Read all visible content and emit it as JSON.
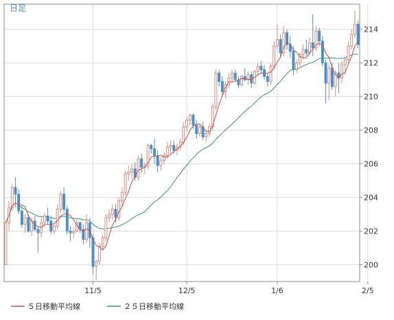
{
  "chart_data": {
    "type": "candlestick",
    "title": "日足",
    "colors": {
      "up": "#d98a7a",
      "down": "#4a90c8",
      "ma5": "#c84c4c",
      "ma25": "#2f9a6a"
    },
    "ylim": [
      199,
      215.5
    ],
    "yticks": [
      200,
      202,
      204,
      206,
      208,
      210,
      212,
      214
    ],
    "xticks": [
      {
        "label": "11/5",
        "index": 27
      },
      {
        "label": "12/5",
        "index": 56
      },
      {
        "label": "1/6",
        "index": 84
      },
      {
        "label": "2/5",
        "index": 112
      }
    ],
    "legend": [
      {
        "label": "５日移動平均線",
        "color": "#c84c4c"
      },
      {
        "label": "２５日移動平均線",
        "color": "#2f9a6a"
      }
    ],
    "candles": [
      [
        200.0,
        202.6,
        200.0,
        202.5
      ],
      [
        202.5,
        203.8,
        202.0,
        203.4
      ],
      [
        203.4,
        204.8,
        203.2,
        204.6
      ],
      [
        204.6,
        205.2,
        203.4,
        204.2
      ],
      [
        204.2,
        204.5,
        203.0,
        203.2
      ],
      [
        203.2,
        203.5,
        202.2,
        202.4
      ],
      [
        202.4,
        203.0,
        201.9,
        202.8
      ],
      [
        202.8,
        203.0,
        201.9,
        202.0
      ],
      [
        202.0,
        202.8,
        201.7,
        202.6
      ],
      [
        202.6,
        202.9,
        202.0,
        202.1
      ],
      [
        202.1,
        202.3,
        200.7,
        201.9
      ],
      [
        201.9,
        202.8,
        201.6,
        202.5
      ],
      [
        202.5,
        203.1,
        202.2,
        202.9
      ],
      [
        202.9,
        203.4,
        202.4,
        202.6
      ],
      [
        202.6,
        202.9,
        201.8,
        202.0
      ],
      [
        202.0,
        202.4,
        201.8,
        202.3
      ],
      [
        202.3,
        203.6,
        202.1,
        203.3
      ],
      [
        203.3,
        204.4,
        203.1,
        204.2
      ],
      [
        204.2,
        204.6,
        203.1,
        203.3
      ],
      [
        203.3,
        203.5,
        201.8,
        202.0
      ],
      [
        202.0,
        202.3,
        201.4,
        201.9
      ],
      [
        201.9,
        202.2,
        201.6,
        202.0
      ],
      [
        202.0,
        202.7,
        201.9,
        202.5
      ],
      [
        202.5,
        202.6,
        201.9,
        202.1
      ],
      [
        202.1,
        202.4,
        201.2,
        201.5
      ],
      [
        201.5,
        203.0,
        201.3,
        202.5
      ],
      [
        202.5,
        202.8,
        201.0,
        201.6
      ],
      [
        201.6,
        201.8,
        199.4,
        199.9
      ],
      [
        199.9,
        200.3,
        199.1,
        200.2
      ],
      [
        200.2,
        201.3,
        200.0,
        201.1
      ],
      [
        201.1,
        201.8,
        200.9,
        201.6
      ],
      [
        201.6,
        203.0,
        201.4,
        202.8
      ],
      [
        202.8,
        203.3,
        202.5,
        203.0
      ],
      [
        203.0,
        203.6,
        202.7,
        203.3
      ],
      [
        203.3,
        203.6,
        202.5,
        202.8
      ],
      [
        202.8,
        204.0,
        202.6,
        203.8
      ],
      [
        203.8,
        204.6,
        203.5,
        204.3
      ],
      [
        204.3,
        205.6,
        204.1,
        205.4
      ],
      [
        205.4,
        205.9,
        205.0,
        205.5
      ],
      [
        205.5,
        206.0,
        205.1,
        205.7
      ],
      [
        205.7,
        206.1,
        205.0,
        205.2
      ],
      [
        205.2,
        206.5,
        205.0,
        206.3
      ],
      [
        206.3,
        206.6,
        205.5,
        205.8
      ],
      [
        205.8,
        206.1,
        205.4,
        205.9
      ],
      [
        205.9,
        207.2,
        205.7,
        207.1
      ],
      [
        207.1,
        207.2,
        206.6,
        206.9
      ],
      [
        206.9,
        207.5,
        206.0,
        206.5
      ],
      [
        206.5,
        206.8,
        205.5,
        205.9
      ],
      [
        205.9,
        206.4,
        205.6,
        206.2
      ],
      [
        206.2,
        206.7,
        206.0,
        206.5
      ],
      [
        206.5,
        207.3,
        206.3,
        207.0
      ],
      [
        207.0,
        207.4,
        206.6,
        207.1
      ],
      [
        207.1,
        207.4,
        206.6,
        206.8
      ],
      [
        206.8,
        207.2,
        206.5,
        207.0
      ],
      [
        207.0,
        207.5,
        206.8,
        207.3
      ],
      [
        207.3,
        208.5,
        207.1,
        208.2
      ],
      [
        208.2,
        208.8,
        207.9,
        208.6
      ],
      [
        208.6,
        209.0,
        208.3,
        208.9
      ],
      [
        208.9,
        209.0,
        208.1,
        208.3
      ],
      [
        208.3,
        208.6,
        207.5,
        207.8
      ],
      [
        207.8,
        208.4,
        207.6,
        208.2
      ],
      [
        208.2,
        208.5,
        207.4,
        207.6
      ],
      [
        207.6,
        208.0,
        207.3,
        207.8
      ],
      [
        207.8,
        208.4,
        207.6,
        208.2
      ],
      [
        208.2,
        209.6,
        208.0,
        209.4
      ],
      [
        209.4,
        211.6,
        209.2,
        211.4
      ],
      [
        211.4,
        211.6,
        210.6,
        210.9
      ],
      [
        210.9,
        211.2,
        210.0,
        210.3
      ],
      [
        210.3,
        210.9,
        209.9,
        210.7
      ],
      [
        210.7,
        211.4,
        210.5,
        211.1
      ],
      [
        211.1,
        211.6,
        210.8,
        211.4
      ],
      [
        211.4,
        211.6,
        210.9,
        211.0
      ],
      [
        211.0,
        211.2,
        210.5,
        210.7
      ],
      [
        210.7,
        211.3,
        210.6,
        211.2
      ],
      [
        211.2,
        211.7,
        210.9,
        211.0
      ],
      [
        211.0,
        211.5,
        210.7,
        211.3
      ],
      [
        211.3,
        211.5,
        210.5,
        210.8
      ],
      [
        210.8,
        211.6,
        210.7,
        211.5
      ],
      [
        211.5,
        212.0,
        211.3,
        211.8
      ],
      [
        211.8,
        212.1,
        211.4,
        211.6
      ],
      [
        211.6,
        211.9,
        211.0,
        211.2
      ],
      [
        211.2,
        211.4,
        210.6,
        210.9
      ],
      [
        210.9,
        212.0,
        210.7,
        211.8
      ],
      [
        211.8,
        213.3,
        211.6,
        213.0
      ],
      [
        213.0,
        214.3,
        212.8,
        213.4
      ],
      [
        213.4,
        213.7,
        212.3,
        212.6
      ],
      [
        212.6,
        214.2,
        212.4,
        213.8
      ],
      [
        213.8,
        214.0,
        212.8,
        213.1
      ],
      [
        213.1,
        213.6,
        212.3,
        212.7
      ],
      [
        212.7,
        213.0,
        211.3,
        211.6
      ],
      [
        211.6,
        212.2,
        211.4,
        212.0
      ],
      [
        212.0,
        212.6,
        211.8,
        212.5
      ],
      [
        212.5,
        213.1,
        212.2,
        212.8
      ],
      [
        212.8,
        213.4,
        212.4,
        212.6
      ],
      [
        212.6,
        213.5,
        212.4,
        213.2
      ],
      [
        213.2,
        214.9,
        212.4,
        212.9
      ],
      [
        212.9,
        214.2,
        212.7,
        213.9
      ],
      [
        213.9,
        214.1,
        213.0,
        213.3
      ],
      [
        213.3,
        213.6,
        211.8,
        212.0
      ],
      [
        212.0,
        212.2,
        209.6,
        210.8
      ],
      [
        210.8,
        211.9,
        209.8,
        211.7
      ],
      [
        211.7,
        212.0,
        210.4,
        210.6
      ],
      [
        210.6,
        211.6,
        210.0,
        211.4
      ],
      [
        211.4,
        212.0,
        210.2,
        211.1
      ],
      [
        211.1,
        212.1,
        210.8,
        211.9
      ],
      [
        211.9,
        212.4,
        211.3,
        212.2
      ],
      [
        212.2,
        213.3,
        212.0,
        213.0
      ],
      [
        213.0,
        214.0,
        212.8,
        213.7
      ],
      [
        213.7,
        215.1,
        213.5,
        214.3
      ],
      [
        214.3,
        214.5,
        212.9,
        213.1
      ]
    ]
  }
}
